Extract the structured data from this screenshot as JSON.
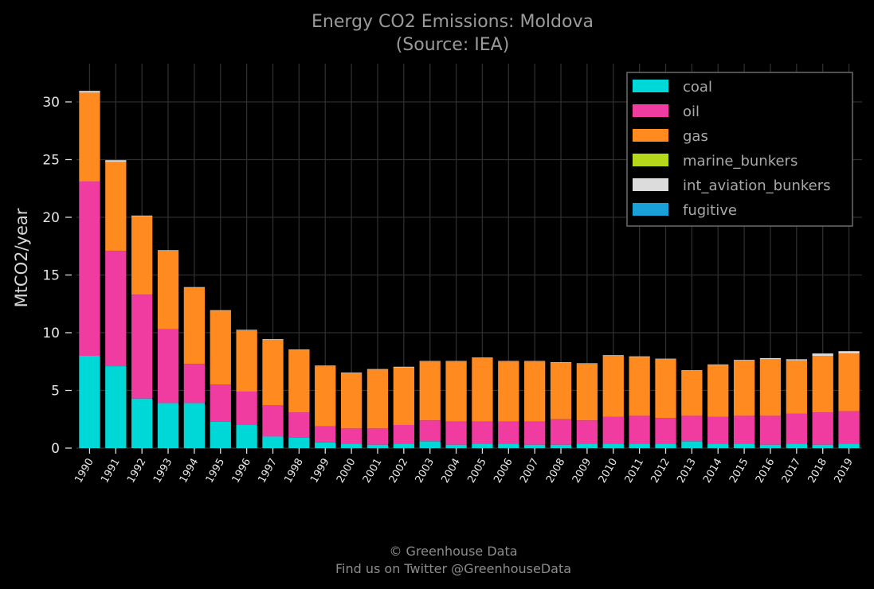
{
  "chart_data": {
    "type": "bar",
    "stacked": true,
    "title": "Energy CO2 Emissions: Moldova",
    "subtitle": "(Source: IEA)",
    "xlabel": "",
    "ylabel": "MtCO2/year",
    "ylim": [
      0,
      32.5
    ],
    "yticks": [
      "0",
      "5",
      "10",
      "15",
      "20",
      "25",
      "30"
    ],
    "grid": true,
    "legend_position": "top-right",
    "categories": [
      "1990",
      "1991",
      "1992",
      "1993",
      "1994",
      "1995",
      "1996",
      "1997",
      "1998",
      "1999",
      "2000",
      "2001",
      "2002",
      "2003",
      "2004",
      "2005",
      "2006",
      "2007",
      "2008",
      "2009",
      "2010",
      "2011",
      "2012",
      "2013",
      "2014",
      "2015",
      "2016",
      "2017",
      "2018",
      "2019"
    ],
    "series": [
      {
        "name": "coal",
        "color": "#00d8d8",
        "values": [
          8.0,
          7.1,
          4.3,
          3.9,
          3.9,
          2.3,
          2.0,
          1.0,
          0.9,
          0.5,
          0.4,
          0.3,
          0.4,
          0.6,
          0.3,
          0.4,
          0.4,
          0.3,
          0.3,
          0.4,
          0.4,
          0.4,
          0.4,
          0.6,
          0.4,
          0.4,
          0.3,
          0.4,
          0.3,
          0.4
        ]
      },
      {
        "name": "oil",
        "color": "#f03ca0",
        "values": [
          15.1,
          10.0,
          9.0,
          6.4,
          3.4,
          3.2,
          2.9,
          2.7,
          2.2,
          1.4,
          1.3,
          1.4,
          1.6,
          1.8,
          2.0,
          1.9,
          1.9,
          2.0,
          2.2,
          2.0,
          2.3,
          2.4,
          2.2,
          2.2,
          2.3,
          2.4,
          2.5,
          2.6,
          2.8,
          2.8
        ]
      },
      {
        "name": "gas",
        "color": "#ff8a20",
        "values": [
          7.7,
          7.7,
          6.8,
          6.8,
          6.6,
          6.4,
          5.3,
          5.7,
          5.4,
          5.2,
          4.8,
          5.1,
          5.0,
          5.1,
          5.2,
          5.5,
          5.2,
          5.2,
          4.9,
          4.9,
          5.3,
          5.1,
          5.1,
          3.9,
          4.5,
          4.8,
          4.9,
          4.6,
          4.9,
          5.0
        ]
      },
      {
        "name": "marine_bunkers",
        "color": "#b5d91a",
        "values": [
          0,
          0,
          0,
          0,
          0,
          0,
          0,
          0,
          0,
          0,
          0,
          0,
          0,
          0,
          0,
          0,
          0,
          0,
          0,
          0,
          0,
          0,
          0,
          0,
          0,
          0,
          0,
          0,
          0,
          0
        ]
      },
      {
        "name": "int_aviation_bunkers",
        "color": "#dcdcdc",
        "values": [
          0.15,
          0.15,
          0.05,
          0.05,
          0.05,
          0.05,
          0.05,
          0.05,
          0.05,
          0.05,
          0.05,
          0.05,
          0.05,
          0.05,
          0.05,
          0.05,
          0.05,
          0.05,
          0.05,
          0.05,
          0.05,
          0.05,
          0.05,
          0.05,
          0.05,
          0.05,
          0.1,
          0.1,
          0.2,
          0.2
        ]
      },
      {
        "name": "fugitive",
        "color": "#1aa0d8",
        "values": [
          0,
          0,
          0,
          0,
          0,
          0,
          0,
          0,
          0,
          0,
          0,
          0,
          0,
          0,
          0,
          0,
          0,
          0,
          0,
          0,
          0,
          0,
          0,
          0,
          0,
          0,
          0,
          0,
          0,
          0
        ]
      }
    ]
  },
  "footer": {
    "line1": "© Greenhouse Data",
    "line2": "Find us on Twitter @GreenhouseData"
  }
}
